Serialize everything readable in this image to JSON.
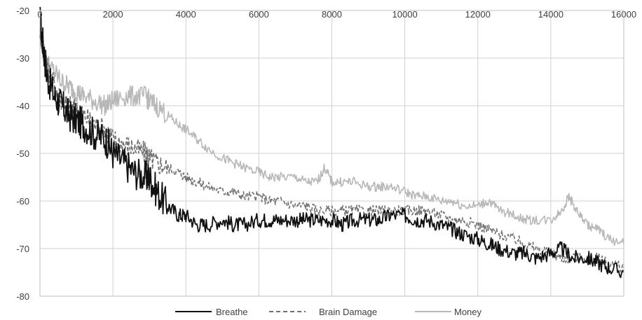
{
  "chart_data": {
    "type": "line",
    "title": "",
    "xlabel": "",
    "ylabel": "",
    "xlim": [
      0,
      16000
    ],
    "ylim": [
      -80,
      -20
    ],
    "x_ticks": [
      "0",
      "2000",
      "4000",
      "6000",
      "8000",
      "10000",
      "12000",
      "14000",
      "16000"
    ],
    "y_ticks": [
      "-20",
      "-30",
      "-40",
      "-50",
      "-60",
      "-70",
      "-80"
    ],
    "grid": true,
    "legend_position": "bottom",
    "series": [
      {
        "name": "Breathe",
        "color": "#111111",
        "dash": "solid",
        "x": [
          0,
          100,
          200,
          400,
          600,
          800,
          1000,
          1200,
          1500,
          1800,
          2000,
          2300,
          2600,
          2900,
          3000,
          3200,
          3500,
          3800,
          4000,
          4300,
          4600,
          5000,
          5300,
          5600,
          6000,
          6300,
          6600,
          7000,
          7300,
          7600,
          8000,
          8300,
          8600,
          9000,
          9300,
          9600,
          10000,
          10300,
          10600,
          11000,
          11300,
          11600,
          12000,
          12300,
          12600,
          13000,
          13300,
          13600,
          14000,
          14300,
          14600,
          15000,
          15300,
          15600,
          16000
        ],
        "y": [
          -22,
          -28,
          -34,
          -38,
          -40,
          -42,
          -43,
          -44,
          -46,
          -47,
          -50,
          -52,
          -54,
          -55,
          -55,
          -58,
          -61,
          -63,
          -63,
          -65,
          -65,
          -64,
          -65,
          -65,
          -64,
          -64,
          -64,
          -64,
          -64,
          -64,
          -64,
          -65,
          -64,
          -64,
          -64,
          -63,
          -63,
          -64,
          -64,
          -65,
          -66,
          -67,
          -68,
          -69,
          -70,
          -71,
          -71,
          -72,
          -71,
          -70,
          -72,
          -72,
          -73,
          -74,
          -75
        ]
      },
      {
        "name": "Brain Damage",
        "color": "#707070",
        "dash": "dashed",
        "x": [
          0,
          100,
          200,
          400,
          600,
          800,
          1000,
          1200,
          1500,
          1800,
          2000,
          2300,
          2600,
          2900,
          3000,
          3200,
          3500,
          3800,
          4000,
          4300,
          4600,
          5000,
          5300,
          5600,
          6000,
          6300,
          6600,
          7000,
          7300,
          7600,
          8000,
          8300,
          8600,
          9000,
          9300,
          9600,
          10000,
          10300,
          10600,
          11000,
          11300,
          11600,
          12000,
          12300,
          12600,
          13000,
          13300,
          13600,
          14000,
          14300,
          14600,
          15000,
          15300,
          15600,
          16000
        ],
        "y": [
          -24,
          -29,
          -32,
          -36,
          -39,
          -40,
          -41,
          -42,
          -44,
          -45,
          -47,
          -48,
          -49,
          -50,
          -51,
          -52,
          -53,
          -54,
          -55,
          -56,
          -57,
          -58,
          -58,
          -59,
          -59,
          -60,
          -60,
          -61,
          -61,
          -62,
          -62,
          -62,
          -62,
          -62,
          -62,
          -62,
          -62,
          -62,
          -62,
          -63,
          -64,
          -64,
          -65,
          -66,
          -67,
          -68,
          -69,
          -70,
          -71,
          -72,
          -72,
          -72,
          -72,
          -73,
          -74
        ]
      },
      {
        "name": "Money",
        "color": "#b8b8b8",
        "dash": "solid",
        "x": [
          0,
          100,
          200,
          400,
          600,
          800,
          1000,
          1200,
          1500,
          1800,
          2000,
          2300,
          2600,
          2900,
          3000,
          3200,
          3500,
          3800,
          4000,
          4300,
          4600,
          5000,
          5300,
          5600,
          6000,
          6300,
          6600,
          7000,
          7300,
          7600,
          7800,
          8000,
          8300,
          8600,
          9000,
          9300,
          9600,
          10000,
          10300,
          10600,
          11000,
          11300,
          11600,
          12000,
          12300,
          12600,
          13000,
          13300,
          13600,
          14000,
          14300,
          14500,
          14700,
          15000,
          15300,
          15600,
          16000
        ],
        "y": [
          -25,
          -28,
          -31,
          -33,
          -35,
          -36,
          -37,
          -38,
          -39,
          -40,
          -39,
          -38,
          -38,
          -38,
          -39,
          -40,
          -42,
          -44,
          -45,
          -47,
          -49,
          -51,
          -52,
          -53,
          -54,
          -55,
          -55,
          -55,
          -56,
          -56,
          -53,
          -56,
          -56,
          -56,
          -57,
          -57,
          -57,
          -58,
          -59,
          -59,
          -60,
          -60,
          -61,
          -61,
          -60,
          -62,
          -63,
          -64,
          -64,
          -64,
          -62,
          -59,
          -62,
          -65,
          -66,
          -68,
          -69
        ]
      }
    ]
  }
}
